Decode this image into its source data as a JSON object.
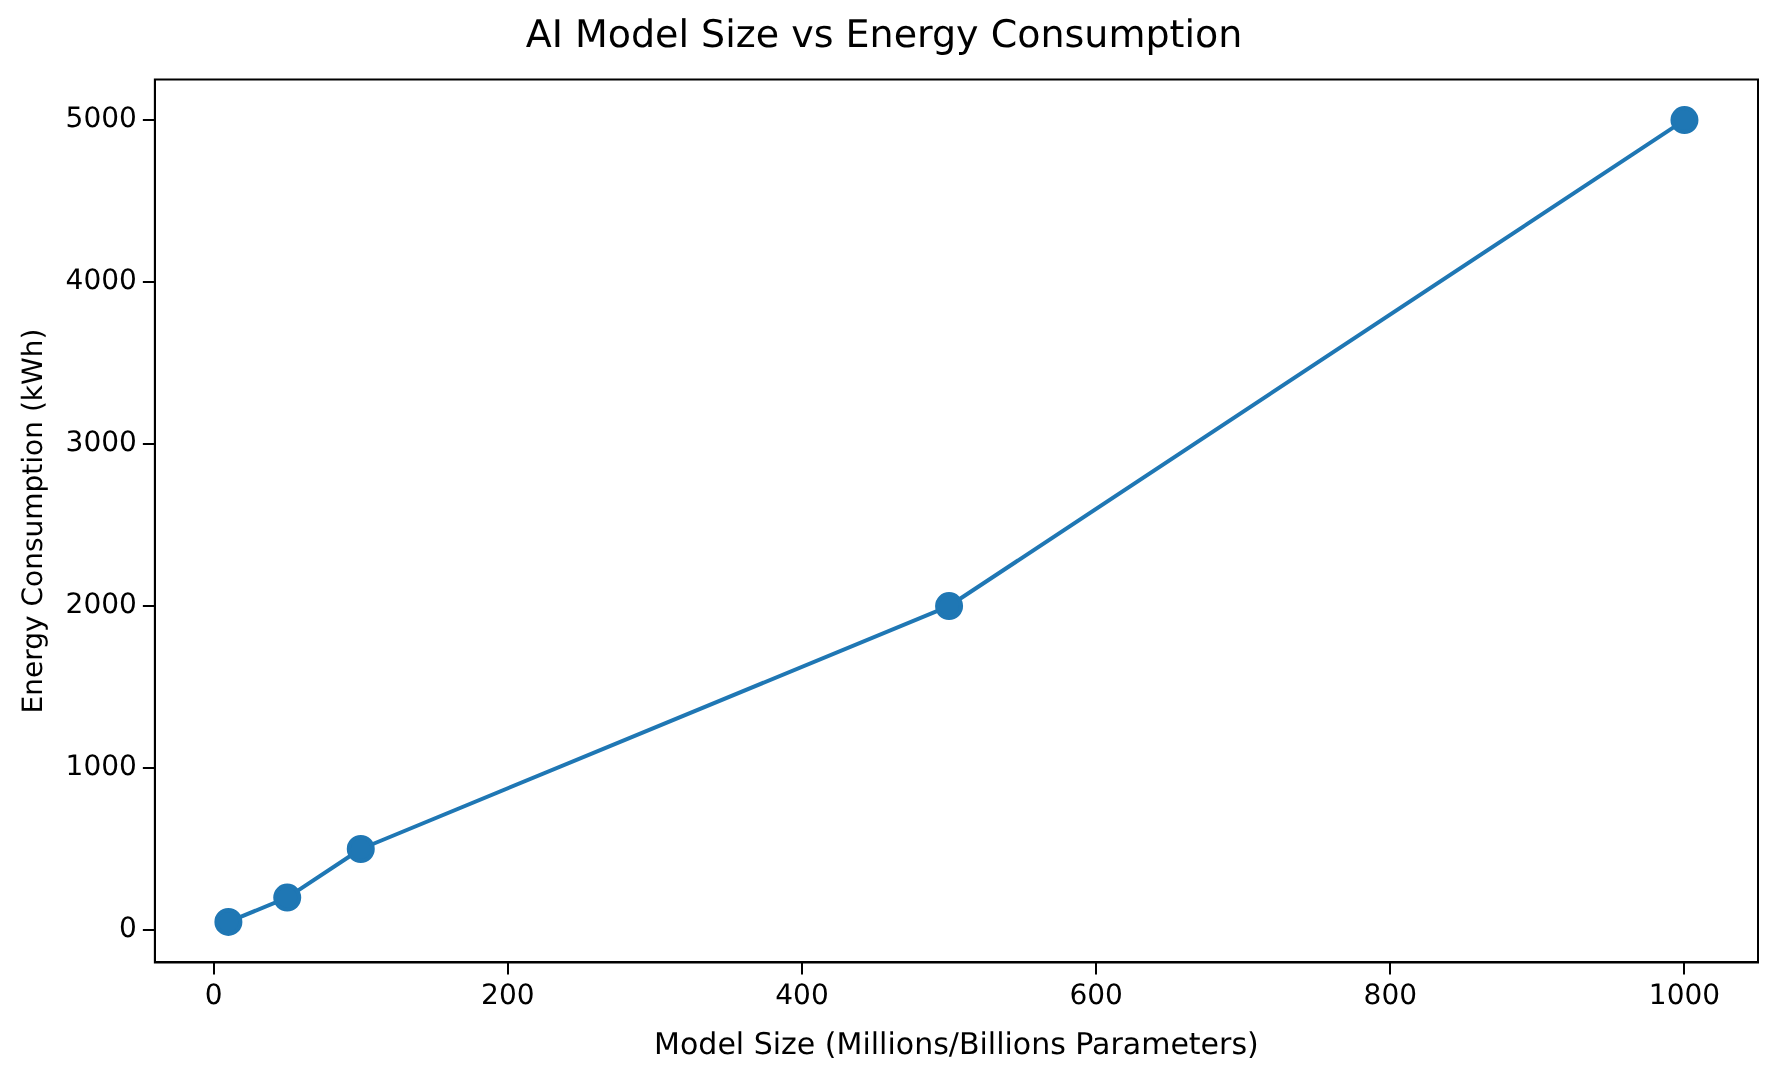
{
  "chart_data": {
    "type": "line",
    "title": "AI Model Size vs Energy Consumption",
    "xlabel": "Model Size (Millions/Billions Parameters)",
    "ylabel": "Energy Consumption (kWh)",
    "x": [
      10,
      50,
      100,
      500,
      1000
    ],
    "series": [
      {
        "color": "#1f77b4",
        "values": [
          50,
          200,
          500,
          2000,
          5000
        ]
      }
    ],
    "xlim": [
      -40,
      1050
    ],
    "xticks": [
      0,
      200,
      400,
      600,
      800,
      1000
    ],
    "ylim": [
      -200,
      5250
    ],
    "yticks": [
      0,
      1000,
      2000,
      3000,
      4000,
      5000
    ],
    "marker": "circle",
    "line_style": "solid",
    "grid": false,
    "legend": false
  }
}
